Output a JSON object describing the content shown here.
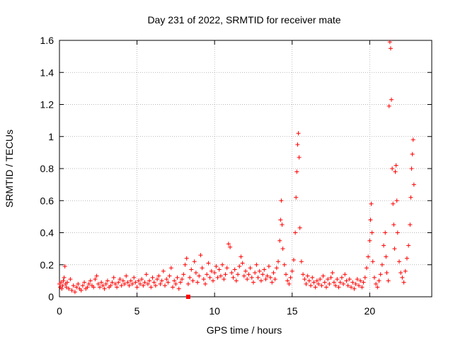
{
  "chart_data": {
    "type": "scatter",
    "title": "Day 231 of 2022, SRMTID for receiver mate",
    "xlabel": "GPS time / hours",
    "ylabel": "SRMTID / TECUs",
    "xlim": [
      0,
      24.0
    ],
    "ylim": [
      0,
      1.6
    ],
    "xticks": [
      0,
      5,
      10,
      15,
      20
    ],
    "xtick_labels": [
      "0",
      "5",
      "10",
      "15",
      "20"
    ],
    "yticks": [
      0,
      0.2,
      0.4,
      0.6,
      0.8,
      1.0,
      1.2,
      1.4,
      1.6
    ],
    "ytick_labels": [
      "0",
      "0.2",
      "0.4",
      "0.6",
      "0.8",
      "1",
      "1.2",
      "1.4",
      "1.6"
    ],
    "grid": true,
    "marker": "plus",
    "color": "#ff0000",
    "series": [
      {
        "name": "SRMTID",
        "points": [
          [
            0.0,
            0.08
          ],
          [
            0.05,
            0.06
          ],
          [
            0.1,
            0.09
          ],
          [
            0.15,
            0.05
          ],
          [
            0.2,
            0.07
          ],
          [
            0.25,
            0.1
          ],
          [
            0.3,
            0.12
          ],
          [
            0.35,
            0.19
          ],
          [
            0.4,
            0.08
          ],
          [
            0.45,
            0.06
          ],
          [
            0.5,
            0.09
          ],
          [
            0.6,
            0.05
          ],
          [
            0.7,
            0.11
          ],
          [
            0.8,
            0.04
          ],
          [
            0.9,
            0.07
          ],
          [
            1.0,
            0.03
          ],
          [
            1.1,
            0.06
          ],
          [
            1.2,
            0.08
          ],
          [
            1.3,
            0.05
          ],
          [
            1.4,
            0.04
          ],
          [
            1.5,
            0.07
          ],
          [
            1.6,
            0.09
          ],
          [
            1.7,
            0.05
          ],
          [
            1.8,
            0.06
          ],
          [
            1.9,
            0.08
          ],
          [
            2.0,
            0.1
          ],
          [
            2.1,
            0.07
          ],
          [
            2.2,
            0.06
          ],
          [
            2.3,
            0.11
          ],
          [
            2.4,
            0.13
          ],
          [
            2.5,
            0.08
          ],
          [
            2.6,
            0.06
          ],
          [
            2.7,
            0.09
          ],
          [
            2.8,
            0.07
          ],
          [
            2.9,
            0.05
          ],
          [
            3.0,
            0.08
          ],
          [
            3.1,
            0.1
          ],
          [
            3.2,
            0.06
          ],
          [
            3.3,
            0.07
          ],
          [
            3.4,
            0.09
          ],
          [
            3.5,
            0.12
          ],
          [
            3.6,
            0.08
          ],
          [
            3.7,
            0.06
          ],
          [
            3.8,
            0.09
          ],
          [
            3.9,
            0.11
          ],
          [
            4.0,
            0.07
          ],
          [
            4.1,
            0.1
          ],
          [
            4.2,
            0.08
          ],
          [
            4.3,
            0.13
          ],
          [
            4.4,
            0.09
          ],
          [
            4.5,
            0.07
          ],
          [
            4.6,
            0.1
          ],
          [
            4.7,
            0.08
          ],
          [
            4.8,
            0.12
          ],
          [
            4.9,
            0.09
          ],
          [
            5.0,
            0.06
          ],
          [
            5.1,
            0.1
          ],
          [
            5.2,
            0.08
          ],
          [
            5.3,
            0.11
          ],
          [
            5.4,
            0.07
          ],
          [
            5.5,
            0.09
          ],
          [
            5.6,
            0.14
          ],
          [
            5.7,
            0.08
          ],
          [
            5.8,
            0.1
          ],
          [
            5.9,
            0.06
          ],
          [
            6.0,
            0.12
          ],
          [
            6.1,
            0.09
          ],
          [
            6.2,
            0.07
          ],
          [
            6.3,
            0.11
          ],
          [
            6.4,
            0.13
          ],
          [
            6.5,
            0.08
          ],
          [
            6.6,
            0.1
          ],
          [
            6.7,
            0.16
          ],
          [
            6.8,
            0.07
          ],
          [
            6.9,
            0.11
          ],
          [
            7.0,
            0.09
          ],
          [
            7.1,
            0.13
          ],
          [
            7.2,
            0.18
          ],
          [
            7.3,
            0.06
          ],
          [
            7.4,
            0.1
          ],
          [
            7.5,
            0.08
          ],
          [
            7.6,
            0.12
          ],
          [
            7.7,
            0.05
          ],
          [
            7.8,
            0.09
          ],
          [
            7.9,
            0.11
          ],
          [
            8.0,
            0.14
          ],
          [
            8.1,
            0.2
          ],
          [
            8.2,
            0.24
          ],
          [
            8.3,
            0.08
          ],
          [
            8.4,
            0.12
          ],
          [
            8.5,
            0.17
          ],
          [
            8.6,
            0.1
          ],
          [
            8.7,
            0.22
          ],
          [
            8.8,
            0.15
          ],
          [
            8.9,
            0.09
          ],
          [
            9.0,
            0.13
          ],
          [
            9.1,
            0.26
          ],
          [
            9.2,
            0.18
          ],
          [
            9.3,
            0.11
          ],
          [
            9.4,
            0.08
          ],
          [
            9.5,
            0.14
          ],
          [
            9.6,
            0.21
          ],
          [
            9.7,
            0.12
          ],
          [
            9.8,
            0.16
          ],
          [
            9.9,
            0.1
          ],
          [
            10.0,
            0.15
          ],
          [
            10.1,
            0.19
          ],
          [
            10.2,
            0.12
          ],
          [
            10.3,
            0.17
          ],
          [
            10.4,
            0.13
          ],
          [
            10.5,
            0.2
          ],
          [
            10.6,
            0.11
          ],
          [
            10.7,
            0.14
          ],
          [
            10.8,
            0.18
          ],
          [
            10.9,
            0.33
          ],
          [
            11.0,
            0.31
          ],
          [
            11.1,
            0.15
          ],
          [
            11.2,
            0.12
          ],
          [
            11.3,
            0.17
          ],
          [
            11.4,
            0.1
          ],
          [
            11.5,
            0.14
          ],
          [
            11.6,
            0.19
          ],
          [
            11.7,
            0.25
          ],
          [
            11.8,
            0.21
          ],
          [
            11.9,
            0.13
          ],
          [
            12.0,
            0.16
          ],
          [
            12.1,
            0.11
          ],
          [
            12.2,
            0.14
          ],
          [
            12.3,
            0.18
          ],
          [
            12.4,
            0.12
          ],
          [
            12.5,
            0.09
          ],
          [
            12.6,
            0.15
          ],
          [
            12.7,
            0.2
          ],
          [
            12.8,
            0.12
          ],
          [
            12.9,
            0.16
          ],
          [
            13.0,
            0.1
          ],
          [
            13.1,
            0.14
          ],
          [
            13.2,
            0.17
          ],
          [
            13.3,
            0.11
          ],
          [
            13.4,
            0.13
          ],
          [
            13.5,
            0.19
          ],
          [
            13.6,
            0.12
          ],
          [
            13.7,
            0.09
          ],
          [
            13.8,
            0.15
          ],
          [
            13.9,
            0.11
          ],
          [
            14.0,
            0.18
          ],
          [
            14.1,
            0.22
          ],
          [
            14.2,
            0.35
          ],
          [
            14.25,
            0.48
          ],
          [
            14.3,
            0.6
          ],
          [
            14.35,
            0.45
          ],
          [
            14.4,
            0.3
          ],
          [
            14.5,
            0.2
          ],
          [
            14.6,
            0.14
          ],
          [
            14.7,
            0.1
          ],
          [
            14.8,
            0.08
          ],
          [
            14.9,
            0.12
          ],
          [
            15.0,
            0.16
          ],
          [
            15.1,
            0.23
          ],
          [
            15.2,
            0.4
          ],
          [
            15.25,
            0.62
          ],
          [
            15.3,
            0.78
          ],
          [
            15.35,
            0.95
          ],
          [
            15.4,
            1.02
          ],
          [
            15.45,
            0.87
          ],
          [
            15.5,
            0.43
          ],
          [
            15.6,
            0.22
          ],
          [
            15.7,
            0.14
          ],
          [
            15.8,
            0.11
          ],
          [
            15.9,
            0.08
          ],
          [
            16.0,
            0.13
          ],
          [
            16.1,
            0.1
          ],
          [
            16.2,
            0.07
          ],
          [
            16.3,
            0.12
          ],
          [
            16.4,
            0.09
          ],
          [
            16.5,
            0.06
          ],
          [
            16.6,
            0.1
          ],
          [
            16.7,
            0.08
          ],
          [
            16.8,
            0.11
          ],
          [
            16.9,
            0.07
          ],
          [
            17.0,
            0.13
          ],
          [
            17.1,
            0.09
          ],
          [
            17.2,
            0.06
          ],
          [
            17.3,
            0.11
          ],
          [
            17.4,
            0.08
          ],
          [
            17.5,
            0.12
          ],
          [
            17.6,
            0.15
          ],
          [
            17.7,
            0.09
          ],
          [
            17.8,
            0.07
          ],
          [
            17.9,
            0.11
          ],
          [
            18.0,
            0.06
          ],
          [
            18.1,
            0.09
          ],
          [
            18.2,
            0.12
          ],
          [
            18.3,
            0.08
          ],
          [
            18.4,
            0.14
          ],
          [
            18.5,
            0.1
          ],
          [
            18.6,
            0.07
          ],
          [
            18.7,
            0.11
          ],
          [
            18.8,
            0.06
          ],
          [
            18.9,
            0.09
          ],
          [
            19.0,
            0.05
          ],
          [
            19.1,
            0.08
          ],
          [
            19.2,
            0.11
          ],
          [
            19.3,
            0.07
          ],
          [
            19.4,
            0.1
          ],
          [
            19.5,
            0.06
          ],
          [
            19.6,
            0.09
          ],
          [
            19.7,
            0.12
          ],
          [
            19.8,
            0.18
          ],
          [
            19.9,
            0.25
          ],
          [
            20.0,
            0.35
          ],
          [
            20.05,
            0.48
          ],
          [
            20.1,
            0.58
          ],
          [
            20.15,
            0.4
          ],
          [
            20.2,
            0.22
          ],
          [
            20.3,
            0.12
          ],
          [
            20.4,
            0.08
          ],
          [
            20.5,
            0.06
          ],
          [
            20.6,
            0.1
          ],
          [
            20.7,
            0.14
          ],
          [
            20.8,
            0.2
          ],
          [
            20.9,
            0.32
          ],
          [
            21.0,
            0.4
          ],
          [
            21.05,
            0.25
          ],
          [
            21.1,
            0.15
          ],
          [
            21.2,
            0.1
          ],
          [
            21.25,
            1.19
          ],
          [
            21.3,
            1.59
          ],
          [
            21.35,
            1.55
          ],
          [
            21.4,
            1.23
          ],
          [
            21.45,
            0.8
          ],
          [
            21.5,
            0.58
          ],
          [
            21.55,
            0.45
          ],
          [
            21.6,
            0.3
          ],
          [
            21.65,
            0.78
          ],
          [
            21.7,
            0.82
          ],
          [
            21.75,
            0.6
          ],
          [
            21.8,
            0.4
          ],
          [
            21.9,
            0.22
          ],
          [
            22.0,
            0.15
          ],
          [
            22.1,
            0.12
          ],
          [
            22.2,
            0.09
          ],
          [
            22.3,
            0.16
          ],
          [
            22.4,
            0.24
          ],
          [
            22.5,
            0.32
          ],
          [
            22.6,
            0.45
          ],
          [
            22.65,
            0.62
          ],
          [
            22.7,
            0.8
          ],
          [
            22.75,
            0.89
          ],
          [
            22.8,
            0.98
          ],
          [
            22.85,
            0.7
          ]
        ]
      }
    ],
    "extra_marker": {
      "x": 8.3,
      "y": 0.0,
      "shape": "square"
    }
  }
}
